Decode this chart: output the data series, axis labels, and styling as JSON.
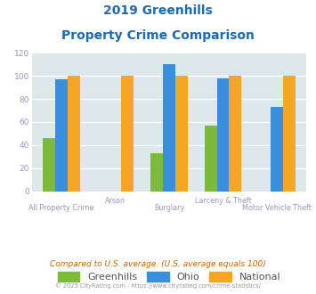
{
  "title_line1": "2019 Greenhills",
  "title_line2": "Property Crime Comparison",
  "categories": [
    "All Property Crime",
    "Arson",
    "Burglary",
    "Larceny & Theft",
    "Motor Vehicle Theft"
  ],
  "greenhills": [
    46,
    0,
    33,
    57,
    0
  ],
  "ohio": [
    97,
    0,
    110,
    98,
    73
  ],
  "national": [
    100,
    100,
    100,
    100,
    100
  ],
  "bar_color_greenhills": "#7cba3a",
  "bar_color_ohio": "#3a8fda",
  "bar_color_national": "#f5a623",
  "title_color": "#1a6bb5",
  "axis_label_color": "#9999bb",
  "legend_label_color": "#555555",
  "footnote_color": "#cc6600",
  "copyright_color": "#999999",
  "bg_plot": "#dde8ea",
  "bg_figure": "#ffffff",
  "ylim": [
    0,
    120
  ],
  "yticks": [
    0,
    20,
    40,
    60,
    80,
    100,
    120
  ],
  "footnote": "Compared to U.S. average. (U.S. average equals 100)",
  "copyright": "© 2025 CityRating.com - https://www.cityrating.com/crime-statistics/",
  "legend_entries": [
    "Greenhills",
    "Ohio",
    "National"
  ],
  "bottom_labels": [
    "All Property Crime",
    "",
    "Burglary",
    "",
    "Motor Vehicle Theft"
  ],
  "top_labels": [
    "",
    "Arson",
    "",
    "Larceny & Theft",
    ""
  ]
}
